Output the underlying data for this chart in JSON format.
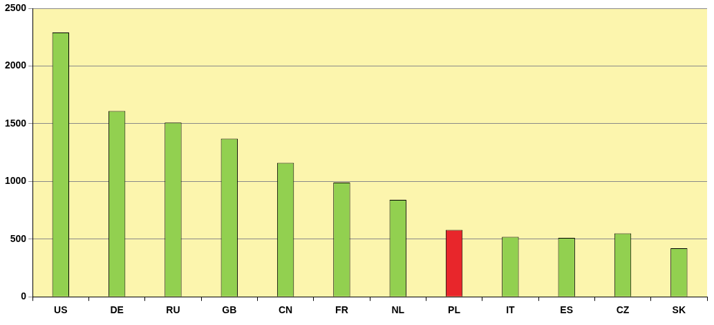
{
  "chart_data": {
    "type": "bar",
    "categories": [
      "US",
      "DE",
      "RU",
      "GB",
      "CN",
      "FR",
      "NL",
      "PL",
      "IT",
      "ES",
      "CZ",
      "SK"
    ],
    "values": [
      2290,
      1610,
      1510,
      1370,
      1160,
      990,
      840,
      580,
      520,
      510,
      550,
      420
    ],
    "colors": [
      "#92d050",
      "#92d050",
      "#92d050",
      "#92d050",
      "#92d050",
      "#92d050",
      "#92d050",
      "#e8262b",
      "#92d050",
      "#92d050",
      "#92d050",
      "#92d050"
    ],
    "ylim": [
      0,
      2500
    ],
    "yticks": [
      0,
      500,
      1000,
      1500,
      2000,
      2500
    ],
    "grid": "y",
    "legend": false
  }
}
